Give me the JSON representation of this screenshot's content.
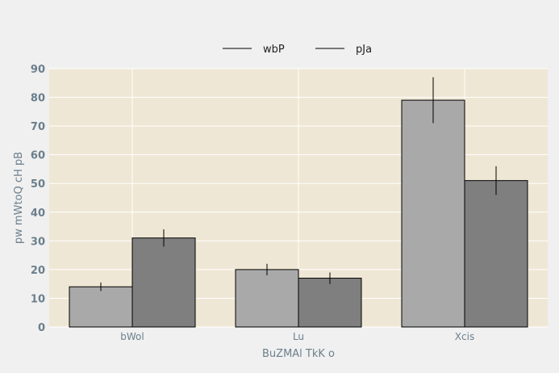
{
  "chart_data": {
    "type": "bar",
    "categories": [
      "bWol",
      "Lu",
      "Xcis"
    ],
    "series": [
      {
        "name": "wbP",
        "values": [
          14,
          20,
          79
        ],
        "errors": [
          1.5,
          2,
          8
        ],
        "color": "#a9a9a9"
      },
      {
        "name": "pJa",
        "values": [
          31,
          17,
          51
        ],
        "errors": [
          3,
          2,
          5
        ],
        "color": "#7f7f7f"
      }
    ],
    "title": "",
    "xlabel": "BuZMAl TkK o",
    "ylabel": "pw mWtoQ cH pB",
    "ylim": [
      0,
      90
    ],
    "yticks": [
      0,
      10,
      20,
      30,
      40,
      50,
      60,
      70,
      80,
      90
    ],
    "ytick_labels": [
      "0",
      "10",
      "20",
      "30",
      "40",
      "50",
      "60",
      "70",
      "80",
      "90"
    ],
    "grid": true,
    "legend_position": "top-center",
    "plot_background": "#efe7d5",
    "figure_background": "#f0f0f0",
    "grid_color": "#ffffff",
    "edge_color": "#000000"
  }
}
